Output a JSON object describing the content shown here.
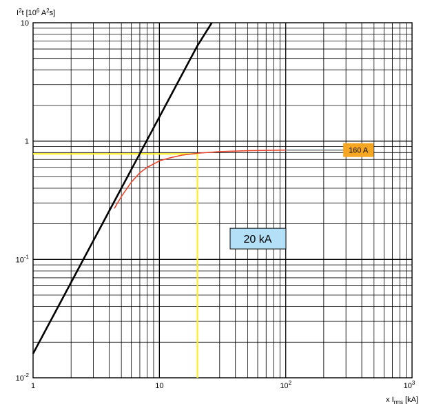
{
  "chart_data": {
    "type": "line",
    "xscale": "log",
    "yscale": "log",
    "xlim": [
      1,
      1000
    ],
    "ylim": [
      0.01,
      10
    ],
    "grid": true,
    "ylabel": {
      "base": "I",
      "sup1": "2",
      "mid": "t [10",
      "sup2": "6",
      "mid2": " A",
      "sup3": "2",
      "end": "s]"
    },
    "xlabel": {
      "pre": "x I",
      "sub": "rms",
      "post": " [kA]"
    },
    "x_ticks": [
      {
        "value": 1,
        "base": "1",
        "exp": ""
      },
      {
        "value": 10,
        "base": "10",
        "exp": ""
      },
      {
        "value": 100,
        "base": "10",
        "exp": "2"
      },
      {
        "value": 1000,
        "base": "10",
        "exp": "3"
      }
    ],
    "y_ticks": [
      {
        "value": 0.01,
        "base": "10",
        "exp": "-2"
      },
      {
        "value": 0.1,
        "base": "10",
        "exp": "-1"
      },
      {
        "value": 1,
        "base": "1",
        "exp": ""
      },
      {
        "value": 10,
        "base": "10",
        "exp": ""
      }
    ],
    "series": [
      {
        "color": "#000000",
        "x": [
          1,
          2,
          4,
          7,
          10,
          20,
          26
        ],
        "y": [
          0.016,
          0.064,
          0.256,
          0.784,
          1.6,
          6.4,
          10.8
        ]
      },
      {
        "color": "#e8452c",
        "x": [
          4.4,
          5,
          6,
          7,
          8,
          10,
          12,
          15,
          20,
          30,
          50,
          100,
          200,
          300
        ],
        "y": [
          0.27,
          0.34,
          0.45,
          0.54,
          0.6,
          0.68,
          0.72,
          0.76,
          0.79,
          0.815,
          0.83,
          0.84,
          0.84,
          0.84
        ]
      },
      {
        "color": "#3aa0b0",
        "x": [
          100,
          420
        ],
        "y": [
          0.84,
          0.84
        ]
      }
    ],
    "annotations": {
      "limit_label": {
        "text": "160 A",
        "x": 300,
        "y": 0.84,
        "bg": "#f5a623"
      },
      "current_box": {
        "text": "20 kA",
        "x": 60,
        "y": 0.15,
        "bg": "#b3e0f7"
      },
      "yellow_guide": {
        "x": 20,
        "y": 0.78,
        "color": "#ffee22"
      }
    }
  }
}
